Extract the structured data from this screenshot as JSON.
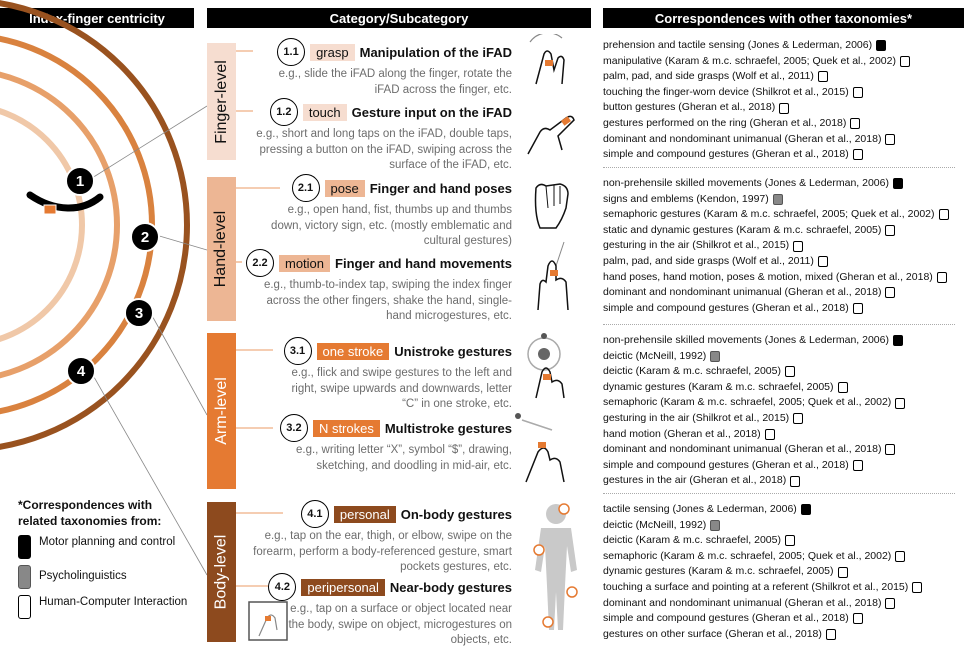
{
  "headers": {
    "centricity": "Index-finger centricity",
    "category": "Category/Subcategory",
    "correspondences": "Correspondences with other taxonomies*"
  },
  "colors": {
    "finger": "#f6ddd0",
    "hand": "#edb694",
    "arm": "#e57a32",
    "body": "#8d4a1e",
    "ring1": "#f0c8a8",
    "ring2": "#e7a06a",
    "ring3": "#d9823f",
    "ring4": "#99521f"
  },
  "ring_numbers": [
    "1",
    "2",
    "3",
    "4"
  ],
  "levels": [
    {
      "name": "Finger-level",
      "subcategories": [
        {
          "num": "1.1",
          "tag": "grasp",
          "title": "Manipulation of the iFAD",
          "desc": "e.g., slide the iFAD along the finger, rotate the iFAD across the finger, etc."
        },
        {
          "num": "1.2",
          "tag": "touch",
          "title": "Gesture input on the iFAD",
          "desc": "e.g., short and long taps on the iFAD, double taps, pressing a button on the iFAD, swiping across the surface of the iFAD, etc."
        }
      ],
      "correspondences": [
        {
          "text": "prehension and tactile sensing (Jones & Lederman, 2006)",
          "source": "motor"
        },
        {
          "text": "manipulative (Karam & m.c. schraefel, 2005; Quek et al., 2002)",
          "source": "hci"
        },
        {
          "text": "palm, pad, and side grasps (Wolf et al., 2011)",
          "source": "hci"
        },
        {
          "text": "touching the finger-worn device (Shilkrot et al., 2015)",
          "source": "hci"
        },
        {
          "text": "button gestures (Gheran et al., 2018)",
          "source": "hci"
        },
        {
          "text": "gestures performed on the ring (Gheran et al., 2018)",
          "source": "hci"
        },
        {
          "text": "dominant and nondominant unimanual (Gheran et al., 2018)",
          "source": "hci"
        },
        {
          "text": "simple and compound gestures (Gheran et al., 2018)",
          "source": "hci"
        }
      ]
    },
    {
      "name": "Hand-level",
      "subcategories": [
        {
          "num": "2.1",
          "tag": "pose",
          "title": "Finger and hand poses",
          "desc": "e.g., open hand, fist, thumbs up and thumbs down, victory sign, etc. (mostly emblematic and cultural gestures)"
        },
        {
          "num": "2.2",
          "tag": "motion",
          "title": "Finger and hand movements",
          "desc": "e.g., thumb-to-index tap, swiping the index finger across the other fingers, shake the hand, single-hand microgestures, etc."
        }
      ],
      "correspondences": [
        {
          "text": "non-prehensile skilled movements (Jones & Lederman, 2006)",
          "source": "motor"
        },
        {
          "text": "signs and emblems (Kendon, 1997)",
          "source": "psy"
        },
        {
          "text": "semaphoric gestures (Karam & m.c. schraefel, 2005; Quek et al., 2002)",
          "source": "hci"
        },
        {
          "text": "static and dynamic gestures (Karam & m.c. schraefel, 2005)",
          "source": "hci"
        },
        {
          "text": "gesturing in the air (Shilkrot et al., 2015)",
          "source": "hci"
        },
        {
          "text": "palm, pad, and side grasps (Wolf et al., 2011)",
          "source": "hci"
        },
        {
          "text": "hand poses, hand motion, poses & motion, mixed (Gheran et al., 2018)",
          "source": "hci"
        },
        {
          "text": "dominant and nondominant unimanual (Gheran et al., 2018)",
          "source": "hci"
        },
        {
          "text": "simple and compound gestures (Gheran et al., 2018)",
          "source": "hci"
        }
      ]
    },
    {
      "name": "Arm-level",
      "subcategories": [
        {
          "num": "3.1",
          "tag": "one stroke",
          "title": "Unistroke gestures",
          "desc": "e.g., flick and swipe gestures to the left and right, swipe upwards and downwards, letter “C” in one stroke, etc."
        },
        {
          "num": "3.2",
          "tag": "N strokes",
          "title": "Multistroke gestures",
          "desc": "e.g., writing letter “X”, symbol “$”, drawing, sketching, and doodling in mid-air, etc."
        }
      ],
      "correspondences": [
        {
          "text": "non-prehensile skilled movements (Jones & Lederman, 2006)",
          "source": "motor"
        },
        {
          "text": "deictic (McNeill, 1992)",
          "source": "psy"
        },
        {
          "text": "deictic (Karam & m.c. schraefel, 2005)",
          "source": "hci"
        },
        {
          "text": "dynamic gestures (Karam & m.c. schraefel, 2005)",
          "source": "hci"
        },
        {
          "text": "semaphoric (Karam & m.c. schraefel, 2005; Quek et al., 2002)",
          "source": "hci"
        },
        {
          "text": "gesturing in the air (Shilkrot et al., 2015)",
          "source": "hci"
        },
        {
          "text": "hand motion (Gheran et al., 2018)",
          "source": "hci"
        },
        {
          "text": "dominant and nondominant unimanual (Gheran et al., 2018)",
          "source": "hci"
        },
        {
          "text": "simple and compound gestures (Gheran et al., 2018)",
          "source": "hci"
        },
        {
          "text": "gestures in the air (Gheran et al., 2018)",
          "source": "hci"
        }
      ]
    },
    {
      "name": "Body-level",
      "subcategories": [
        {
          "num": "4.1",
          "tag": "personal",
          "title": "On-body gestures",
          "desc": "e.g., tap on the ear, thigh, or elbow, swipe on the forearm, perform a body-referenced gesture, smart pockets gestures, etc."
        },
        {
          "num": "4.2",
          "tag": "peripersonal",
          "title": "Near-body gestures",
          "desc": "e.g., tap on a surface or object located near the body, swipe on object, microgestures on objects, etc."
        }
      ],
      "correspondences": [
        {
          "text": "tactile sensing (Jones & Lederman, 2006)",
          "source": "motor"
        },
        {
          "text": "deictic (McNeill, 1992)",
          "source": "psy"
        },
        {
          "text": "deictic (Karam & m.c. schraefel, 2005)",
          "source": "hci"
        },
        {
          "text": "semaphoric (Karam & m.c. schraefel, 2005; Quek et al., 2002)",
          "source": "hci"
        },
        {
          "text": "dynamic gestures (Karam & m.c. schraefel, 2005)",
          "source": "hci"
        },
        {
          "text": "touching a surface and pointing at a referent (Shilkrot et al., 2015)",
          "source": "hci"
        },
        {
          "text": "dominant and nondominant unimanual (Gheran et al., 2018)",
          "source": "hci"
        },
        {
          "text": "simple and compound gestures (Gheran et al., 2018)",
          "source": "hci"
        },
        {
          "text": "gestures on other surface (Gheran et al., 2018)",
          "source": "hci"
        }
      ]
    }
  ],
  "legend": {
    "title": "*Correspondences with related taxonomies from:",
    "items": [
      {
        "label": "Motor planning and control",
        "source": "motor"
      },
      {
        "label": "Psycholinguistics",
        "source": "psy"
      },
      {
        "label": "Human-Computer Interaction",
        "source": "hci"
      }
    ]
  }
}
